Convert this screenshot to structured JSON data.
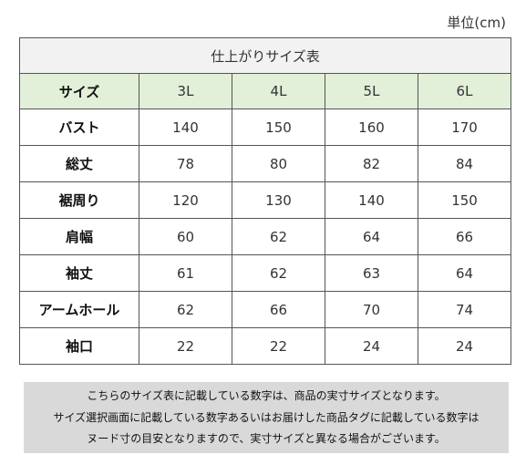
{
  "unit_label": "単位(cm)",
  "table": {
    "title": "仕上がりサイズ表",
    "header": {
      "label": "サイズ",
      "sizes": [
        "3L",
        "4L",
        "5L",
        "6L"
      ]
    },
    "rows": [
      {
        "label": "バスト",
        "values": [
          "140",
          "150",
          "160",
          "170"
        ]
      },
      {
        "label": "総丈",
        "values": [
          "78",
          "80",
          "82",
          "84"
        ]
      },
      {
        "label": "裾周り",
        "values": [
          "120",
          "130",
          "140",
          "150"
        ]
      },
      {
        "label": "肩幅",
        "values": [
          "60",
          "62",
          "64",
          "66"
        ]
      },
      {
        "label": "袖丈",
        "values": [
          "61",
          "62",
          "63",
          "64"
        ]
      },
      {
        "label": "アームホール",
        "values": [
          "62",
          "66",
          "70",
          "74"
        ]
      },
      {
        "label": "袖口",
        "values": [
          "22",
          "22",
          "24",
          "24"
        ]
      }
    ]
  },
  "note": {
    "lines": [
      "こちらのサイズ表に記載している数字は、商品の実寸サイズとなります。",
      "サイズ選択画面に記載している数字あるいはお届けした商品タグに記載している数字は",
      "ヌード寸の目安となりますので、実寸サイズと異なる場合がございます。"
    ]
  },
  "colors": {
    "title_bg": "#f2f2f2",
    "header_bg": "#e2efd9",
    "note_bg": "#d9d9d9",
    "border": "#555555"
  }
}
